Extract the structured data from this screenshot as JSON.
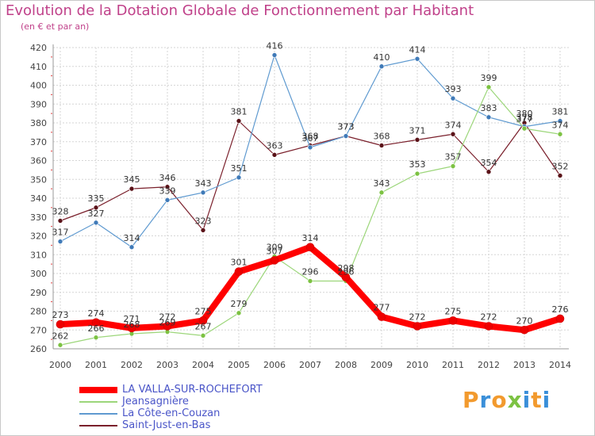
{
  "title": "Evolution de la Dotation Globale de Fonctionnement par Habitant",
  "subtitle": "(en € et par an)",
  "logo": {
    "letters": [
      "P",
      "r",
      "o",
      "x",
      "i",
      "t",
      "i"
    ],
    "colors": [
      "#f29a2e",
      "#3a8fd9",
      "#f29a2e",
      "#7cc242",
      "#3a8fd9",
      "#f29a2e",
      "#3a8fd9"
    ]
  },
  "chart_data": {
    "type": "line",
    "title": "Evolution de la Dotation Globale de Fonctionnement par Habitant",
    "subtitle": "(en € et par an)",
    "x": [
      "2000",
      "2001",
      "2002",
      "2003",
      "2004",
      "2005",
      "2006",
      "2007",
      "2008",
      "2009",
      "2010",
      "2011",
      "2012",
      "2013",
      "2014"
    ],
    "ylim": [
      260,
      420
    ],
    "yticks": [
      260,
      270,
      280,
      290,
      300,
      310,
      320,
      330,
      340,
      350,
      360,
      370,
      380,
      390,
      400,
      410,
      420
    ],
    "grid": true,
    "legend_position": "bottom-left",
    "series": [
      {
        "name": "Saint-Just-en-Bas",
        "color": "#7a1f2b",
        "marker": "#5a1218",
        "width": 1.2,
        "values": [
          328,
          335,
          345,
          346,
          323,
          381,
          363,
          368,
          373,
          368,
          371,
          374,
          354,
          380,
          352
        ]
      },
      {
        "name": "La Côte-en-Couzan",
        "color": "#5f9ad0",
        "marker": "#3f7ab8",
        "width": 1.2,
        "values": [
          317,
          327,
          314,
          339,
          343,
          351,
          416,
          367,
          373,
          410,
          414,
          393,
          383,
          378,
          381
        ]
      },
      {
        "name": "Jeansagnière",
        "color": "#9cd67a",
        "marker": "#7cc242",
        "width": 1.2,
        "values": [
          262,
          266,
          268,
          269,
          267,
          279,
          309,
          296,
          296,
          343,
          353,
          357,
          399,
          377,
          374
        ]
      },
      {
        "name": "LA VALLA-SUR-ROCHEFORT",
        "color": "#ff0000",
        "marker": "#ee0000",
        "width": 8,
        "values": [
          273,
          274,
          271,
          272,
          275,
          301,
          307,
          314,
          298,
          277,
          272,
          275,
          272,
          270,
          276
        ]
      }
    ]
  }
}
